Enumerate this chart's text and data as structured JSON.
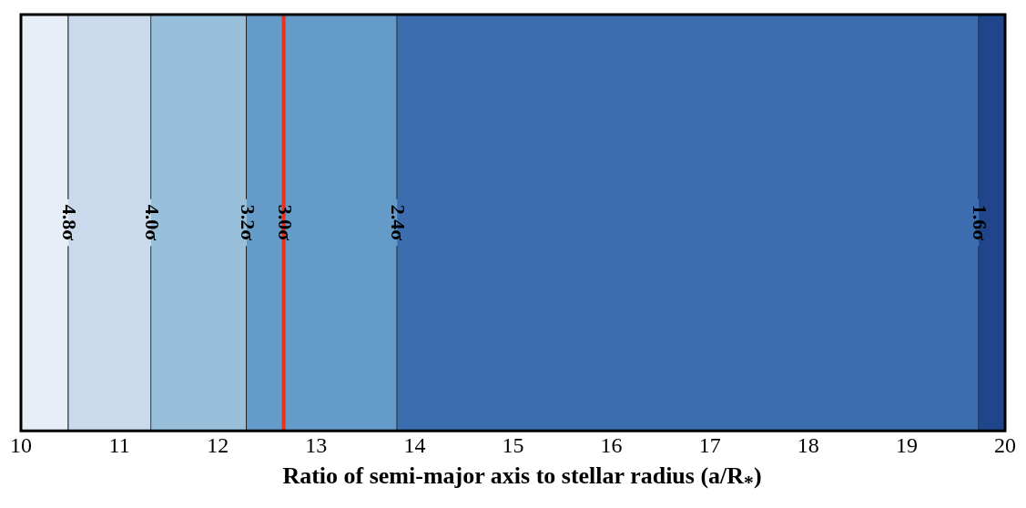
{
  "chart_data": {
    "type": "bar",
    "orientation": "horizontal",
    "xlabel": "Ratio of semi-major axis to stellar radius (a/R$_{*}$)",
    "xlim": [
      10,
      20
    ],
    "xticks": [
      10,
      11,
      12,
      13,
      14,
      15,
      16,
      17,
      18,
      19,
      20
    ],
    "tick_labels": "x",
    "categories": [
      null
    ],
    "series": [
      {
        "color": "#e8eef8",
        "base": [
          10
        ],
        "values": [
          0.48
        ]
      },
      {
        "color": "#cad9ec",
        "base": [
          10.48
        ],
        "values": [
          0.84
        ]
      },
      {
        "color": "#99c0da",
        "base": [
          11.32
        ],
        "values": [
          0.97
        ]
      },
      {
        "color": "#659bc8",
        "base": [
          12.29
        ],
        "values": [
          1.53
        ]
      },
      {
        "color": "#3b6daf",
        "base": [
          13.82
        ],
        "values": [
          5.91
        ]
      },
      {
        "color": "#21458a",
        "base": [
          19.73
        ],
        "values": [
          0.27
        ]
      }
    ],
    "ref_lines": [
      {
        "axis": "x",
        "value": 10.48,
        "label": "4.8σ",
        "color": "#000000"
      },
      {
        "axis": "x",
        "value": 11.32,
        "label": "4.0σ",
        "color": "#333333"
      },
      {
        "axis": "x",
        "value": 12.29,
        "label": "3.2σ",
        "color": "#222222"
      },
      {
        "axis": "x",
        "value": 12.67,
        "label": "3.0σ",
        "color": "#e8321e"
      },
      {
        "axis": "x",
        "value": 13.82,
        "label": "2.4σ",
        "color": "#222222"
      },
      {
        "axis": "x",
        "value": 19.73,
        "label": "1.6σ",
        "color": "#1a2f5a"
      }
    ]
  }
}
